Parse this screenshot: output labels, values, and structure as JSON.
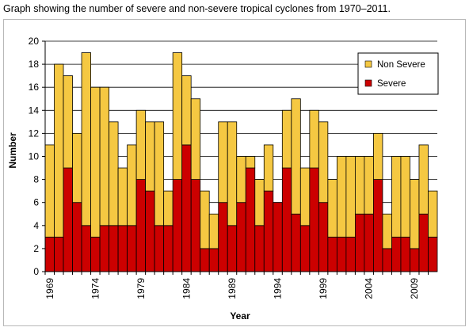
{
  "caption": "Graph showing the number of severe and non-severe tropical cyclones from 1970–2011.",
  "colors": {
    "severe": "#cc0000",
    "non_severe": "#f5c842",
    "grid": "#000000",
    "bar_border": "#000000"
  },
  "chart_data": {
    "type": "bar",
    "stacked": true,
    "title": "",
    "xlabel": "Year",
    "ylabel": "Number",
    "ylim": [
      0,
      20
    ],
    "yticks": [
      0,
      2,
      4,
      6,
      8,
      10,
      12,
      14,
      16,
      18,
      20
    ],
    "x_tick_labels": [
      "1969",
      "1974",
      "1979",
      "1984",
      "1989",
      "1994",
      "1999",
      "2004",
      "2009"
    ],
    "grid": true,
    "legend_position": "top-right",
    "categories": [
      "1969",
      "1970",
      "1971",
      "1972",
      "1973",
      "1974",
      "1975",
      "1976",
      "1977",
      "1978",
      "1979",
      "1980",
      "1981",
      "1982",
      "1983",
      "1984",
      "1985",
      "1986",
      "1987",
      "1988",
      "1989",
      "1990",
      "1991",
      "1992",
      "1993",
      "1994",
      "1995",
      "1996",
      "1997",
      "1998",
      "1999",
      "2000",
      "2001",
      "2002",
      "2003",
      "2004",
      "2005",
      "2006",
      "2007",
      "2008",
      "2009",
      "2010",
      "2011"
    ],
    "series": [
      {
        "name": "Severe",
        "color": "#cc0000",
        "values": [
          3,
          3,
          9,
          6,
          4,
          3,
          4,
          4,
          4,
          4,
          8,
          7,
          4,
          4,
          8,
          11,
          8,
          2,
          2,
          6,
          4,
          6,
          9,
          4,
          7,
          6,
          9,
          5,
          4,
          9,
          6,
          3,
          3,
          3,
          5,
          5,
          8,
          2,
          3,
          3,
          2,
          5,
          3
        ]
      },
      {
        "name": "Non Severe",
        "color": "#f5c842",
        "values": [
          8,
          15,
          8,
          6,
          15,
          13,
          12,
          9,
          5,
          7,
          6,
          6,
          9,
          3,
          11,
          6,
          7,
          5,
          3,
          7,
          9,
          4,
          1,
          4,
          4,
          0,
          5,
          10,
          5,
          5,
          7,
          5,
          7,
          7,
          5,
          5,
          4,
          3,
          7,
          7,
          6,
          6,
          4
        ]
      }
    ]
  }
}
